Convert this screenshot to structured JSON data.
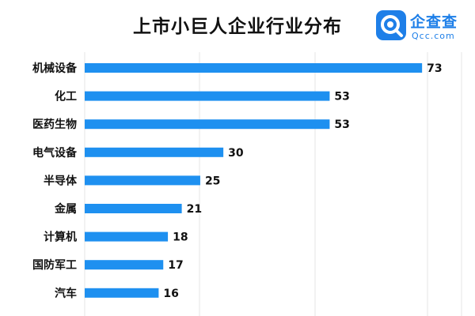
{
  "chart_data": {
    "type": "bar",
    "orientation": "horizontal",
    "title": "上市小巨人企业行业分布",
    "categories": [
      "机械设备",
      "化工",
      "医药生物",
      "电气设备",
      "半导体",
      "金属",
      "计算机",
      "国防军工",
      "汽车"
    ],
    "values": [
      73,
      53,
      53,
      30,
      25,
      21,
      18,
      17,
      16
    ],
    "xlim": [
      0,
      74
    ],
    "grid": true,
    "bar_color": "#1e90f0"
  },
  "logo": {
    "name_cn": "企查查",
    "name_en": "Qcc.com",
    "color": "#1e7fe8"
  }
}
